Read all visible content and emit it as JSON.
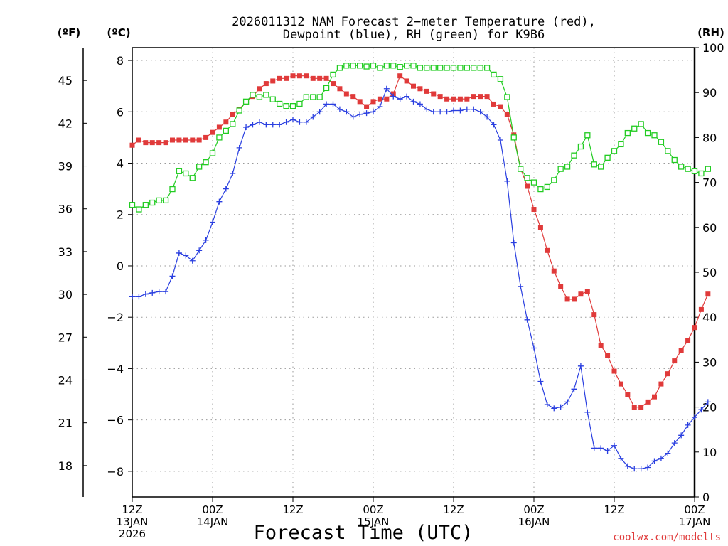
{
  "chart_data": {
    "type": "line",
    "title_lines": [
      "2026011312 NAM Forecast 2−meter Temperature (red),",
      "Dewpoint (blue), RH (green) for K9B6"
    ],
    "xlabel": "Forecast Time (UTC)",
    "credit": "coolwx.com/modelts",
    "units": {
      "left_f": "(ºF)",
      "left_c": "(ºC)",
      "right_rh": "(RH)"
    },
    "x_range_hours": [
      0,
      84
    ],
    "y_range_c": [
      -9,
      8.5
    ],
    "y_range_rh": [
      0,
      100
    ],
    "c_ticks": [
      {
        "v": 8,
        "label": "8"
      },
      {
        "v": 6,
        "label": "6"
      },
      {
        "v": 4,
        "label": "4"
      },
      {
        "v": 2,
        "label": "2"
      },
      {
        "v": 0,
        "label": "0"
      },
      {
        "v": -2,
        "label": "−2"
      },
      {
        "v": -4,
        "label": "−4"
      },
      {
        "v": -6,
        "label": "−6"
      },
      {
        "v": -8,
        "label": "−8"
      }
    ],
    "f_ticks": [
      {
        "v": 45,
        "label": "45"
      },
      {
        "v": 42,
        "label": "42"
      },
      {
        "v": 39,
        "label": "39"
      },
      {
        "v": 36,
        "label": "36"
      },
      {
        "v": 33,
        "label": "33"
      },
      {
        "v": 30,
        "label": "30"
      },
      {
        "v": 27,
        "label": "27"
      },
      {
        "v": 24,
        "label": "24"
      },
      {
        "v": 21,
        "label": "21"
      },
      {
        "v": 18,
        "label": "18"
      }
    ],
    "rh_ticks": [
      {
        "v": 100,
        "label": "100"
      },
      {
        "v": 90,
        "label": "90"
      },
      {
        "v": 80,
        "label": "80"
      },
      {
        "v": 70,
        "label": "70"
      },
      {
        "v": 60,
        "label": "60"
      },
      {
        "v": 50,
        "label": "50"
      },
      {
        "v": 40,
        "label": "40"
      },
      {
        "v": 30,
        "label": "30"
      },
      {
        "v": 20,
        "label": "20"
      },
      {
        "v": 10,
        "label": "10"
      },
      {
        "v": 0,
        "label": "0"
      }
    ],
    "x_ticks": [
      {
        "h": 0,
        "lines": [
          "12Z",
          "13JAN",
          "2026"
        ]
      },
      {
        "h": 12,
        "lines": [
          "00Z",
          "14JAN"
        ]
      },
      {
        "h": 24,
        "lines": [
          "12Z"
        ]
      },
      {
        "h": 36,
        "lines": [
          "00Z",
          "15JAN"
        ]
      },
      {
        "h": 48,
        "lines": [
          "12Z"
        ]
      },
      {
        "h": 60,
        "lines": [
          "00Z",
          "16JAN"
        ]
      },
      {
        "h": 72,
        "lines": [
          "12Z"
        ]
      },
      {
        "h": 84,
        "lines": [
          "00Z",
          "17JAN"
        ]
      }
    ],
    "series": [
      {
        "name": "Temperature",
        "color": "#e03a3a",
        "marker": "filled-square",
        "units": "C",
        "values": [
          4.7,
          4.9,
          4.8,
          4.8,
          4.8,
          4.8,
          4.9,
          4.9,
          4.9,
          4.9,
          4.9,
          5.0,
          5.2,
          5.4,
          5.6,
          5.9,
          6.1,
          6.4,
          6.6,
          6.9,
          7.1,
          7.2,
          7.3,
          7.3,
          7.4,
          7.4,
          7.4,
          7.3,
          7.3,
          7.3,
          7.1,
          6.9,
          6.7,
          6.6,
          6.4,
          6.2,
          6.4,
          6.5,
          6.5,
          6.7,
          7.4,
          7.2,
          7.0,
          6.9,
          6.8,
          6.7,
          6.6,
          6.5,
          6.5,
          6.5,
          6.5,
          6.6,
          6.6,
          6.6,
          6.3,
          6.2,
          5.9,
          5.1,
          3.8,
          3.1,
          2.2,
          1.5,
          0.6,
          -0.2,
          -0.8,
          -1.3,
          -1.3,
          -1.1,
          -1.0,
          -1.9,
          -3.1,
          -3.5,
          -4.1,
          -4.6,
          -5.0,
          -5.5,
          -5.5,
          -5.3,
          -5.1,
          -4.6,
          -4.2,
          -3.7,
          -3.3,
          -2.9,
          -2.4,
          -1.7,
          -1.1
        ]
      },
      {
        "name": "Dewpoint",
        "color": "#2a3fe0",
        "marker": "plus",
        "units": "C",
        "values": [
          -1.2,
          -1.2,
          -1.1,
          -1.05,
          -1.0,
          -1.0,
          -0.4,
          0.5,
          0.4,
          0.2,
          0.6,
          1.0,
          1.7,
          2.5,
          3.0,
          3.6,
          4.6,
          5.4,
          5.5,
          5.6,
          5.5,
          5.5,
          5.5,
          5.6,
          5.7,
          5.6,
          5.6,
          5.8,
          6.0,
          6.3,
          6.3,
          6.1,
          6.0,
          5.8,
          5.9,
          5.95,
          6.0,
          6.2,
          6.9,
          6.6,
          6.5,
          6.6,
          6.4,
          6.3,
          6.1,
          6.0,
          6.0,
          6.0,
          6.05,
          6.05,
          6.1,
          6.1,
          6.0,
          5.8,
          5.5,
          4.9,
          3.3,
          0.9,
          -0.8,
          -2.1,
          -3.2,
          -4.5,
          -5.4,
          -5.55,
          -5.5,
          -5.3,
          -4.8,
          -3.9,
          -5.7,
          -7.1,
          -7.1,
          -7.2,
          -7.0,
          -7.5,
          -7.8,
          -7.9,
          -7.9,
          -7.85,
          -7.6,
          -7.5,
          -7.3,
          -6.9,
          -6.6,
          -6.2,
          -5.9,
          -5.6,
          -5.3
        ]
      },
      {
        "name": "RH",
        "color": "#22cc22",
        "marker": "open-square",
        "units": "%",
        "values": [
          65,
          64,
          65,
          65.5,
          66,
          66,
          68.5,
          72.5,
          72,
          71,
          73.5,
          74.5,
          76.5,
          80,
          81.5,
          83,
          86,
          88,
          89.5,
          89,
          89.5,
          88.5,
          87.5,
          87,
          87,
          87.5,
          89,
          89,
          89,
          91,
          94,
          95.5,
          96,
          96,
          96,
          95.8,
          96,
          95.5,
          96,
          96,
          95.7,
          96,
          96,
          95.5,
          95.5,
          95.5,
          95.5,
          95.5,
          95.5,
          95.5,
          95.5,
          95.5,
          95.5,
          95.5,
          94,
          93,
          89,
          80,
          73,
          71,
          70,
          68.5,
          69,
          70.5,
          73,
          73.5,
          76,
          78,
          80.5,
          74,
          73.5,
          75.5,
          77,
          78.5,
          81,
          82,
          83,
          81,
          80.5,
          79,
          77,
          75,
          73.5,
          73,
          72.5,
          72,
          73
        ]
      }
    ]
  }
}
